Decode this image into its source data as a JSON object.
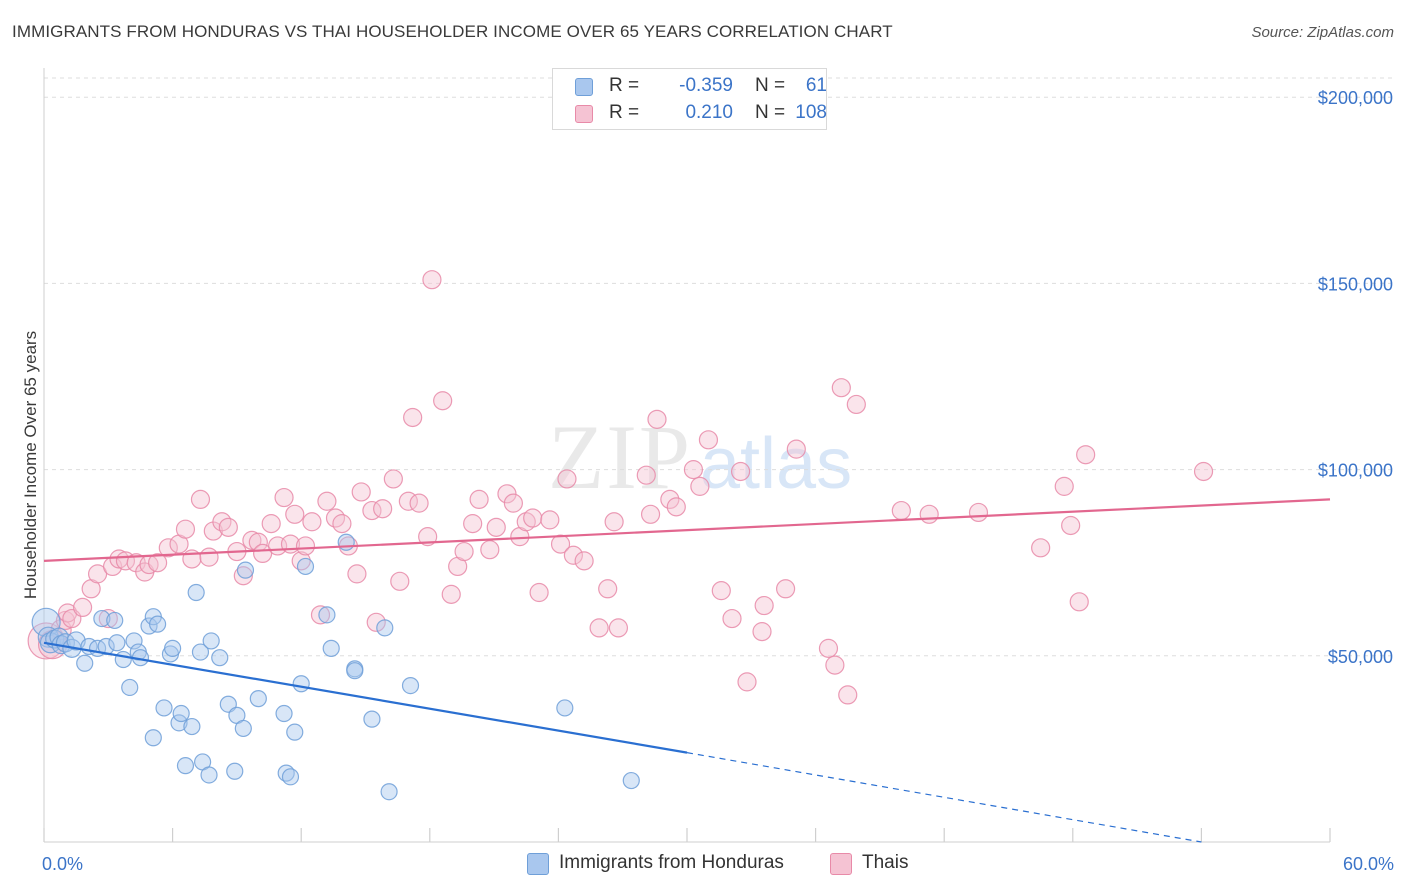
{
  "title": "IMMIGRANTS FROM HONDURAS VS THAI HOUSEHOLDER INCOME OVER 65 YEARS CORRELATION CHART",
  "source": "Source: ZipAtlas.com",
  "watermark": {
    "zip": "ZIP",
    "atlas": "atlas"
  },
  "colors": {
    "blue": "#6f9fd8",
    "blue_fill": "#a9c7ee",
    "blue_line": "#2a6fd1",
    "pink": "#e88aa8",
    "pink_fill": "#f5c3d3",
    "pink_line": "#e2678f",
    "grid": "#dddddd",
    "tick_label": "#3b74c8"
  },
  "legend": {
    "rows": [
      {
        "r_label": "R =",
        "r_value": "-0.359",
        "n_label": "N =",
        "n_value": "61",
        "color": "#6f9fd8"
      },
      {
        "r_label": "R =",
        "r_value": "0.210",
        "n_label": "N =",
        "n_value": "108",
        "color": "#e88aa8"
      }
    ]
  },
  "bottom_legend": [
    {
      "label": "Immigrants from Honduras",
      "color": "#6f9fd8"
    },
    {
      "label": "Thais",
      "color": "#e88aa8"
    }
  ],
  "chart_data": {
    "type": "scatter",
    "title": "IMMIGRANTS FROM HONDURAS VS THAI HOUSEHOLDER INCOME OVER 65 YEARS CORRELATION CHART",
    "xlabel": "",
    "ylabel": "Householder Income Over 65 years",
    "xlim": [
      0,
      60
    ],
    "ylim": [
      0,
      210000
    ],
    "x_tick_labels": [
      "0.0%",
      "60.0%"
    ],
    "y_ticks": [
      50000,
      100000,
      150000,
      200000
    ],
    "y_tick_labels": [
      "$50,000",
      "$100,000",
      "$150,000",
      "$200,000"
    ],
    "grid": true,
    "legend_position": "top-center",
    "series": [
      {
        "name": "Immigrants from Honduras",
        "trend": {
          "x0": 0,
          "y0": 53500,
          "x1": 30,
          "y1": 24000,
          "dashed_to_x": 54,
          "dashed_to_y": 0
        },
        "points": [
          [
            0.1,
            59000,
            14
          ],
          [
            0.2,
            55000,
            10
          ],
          [
            0.3,
            53500,
            10
          ],
          [
            0.5,
            54500,
            9
          ],
          [
            0.7,
            55000,
            9
          ],
          [
            0.8,
            53000,
            9
          ],
          [
            1.0,
            53500,
            9
          ],
          [
            1.3,
            52000,
            9
          ],
          [
            1.5,
            54000,
            9
          ],
          [
            1.9,
            48000,
            8
          ],
          [
            2.1,
            52500,
            8
          ],
          [
            2.5,
            52000,
            8
          ],
          [
            2.7,
            60000,
            8
          ],
          [
            2.9,
            52500,
            8
          ],
          [
            3.3,
            59500,
            8
          ],
          [
            3.4,
            53500,
            8
          ],
          [
            3.7,
            49000,
            8
          ],
          [
            4.0,
            41500,
            8
          ],
          [
            4.2,
            54000,
            8
          ],
          [
            4.4,
            51000,
            8
          ],
          [
            4.5,
            49500,
            8
          ],
          [
            4.9,
            58000,
            8
          ],
          [
            5.1,
            60500,
            8
          ],
          [
            5.1,
            28000,
            8
          ],
          [
            5.3,
            58500,
            8
          ],
          [
            5.6,
            36000,
            8
          ],
          [
            5.9,
            50500,
            8
          ],
          [
            6.0,
            52000,
            8
          ],
          [
            6.3,
            32000,
            8
          ],
          [
            6.4,
            34500,
            8
          ],
          [
            6.6,
            20500,
            8
          ],
          [
            6.9,
            31000,
            8
          ],
          [
            7.1,
            67000,
            8
          ],
          [
            7.3,
            51000,
            8
          ],
          [
            7.4,
            21500,
            8
          ],
          [
            7.7,
            18000,
            8
          ],
          [
            7.8,
            54000,
            8
          ],
          [
            8.2,
            49500,
            8
          ],
          [
            8.6,
            37000,
            8
          ],
          [
            8.9,
            19000,
            8
          ],
          [
            9.0,
            34000,
            8
          ],
          [
            9.3,
            30500,
            8
          ],
          [
            9.4,
            73000,
            8
          ],
          [
            10.0,
            38500,
            8
          ],
          [
            11.2,
            34500,
            8
          ],
          [
            11.3,
            18500,
            8
          ],
          [
            11.5,
            17500,
            8
          ],
          [
            11.7,
            29500,
            8
          ],
          [
            12.0,
            42500,
            8
          ],
          [
            12.2,
            74000,
            8
          ],
          [
            13.2,
            61000,
            8
          ],
          [
            13.4,
            52000,
            8
          ],
          [
            14.1,
            80500,
            8
          ],
          [
            14.5,
            46500,
            8
          ],
          [
            14.5,
            46000,
            8
          ],
          [
            15.3,
            33000,
            8
          ],
          [
            15.9,
            57500,
            8
          ],
          [
            16.1,
            13500,
            8
          ],
          [
            17.1,
            42000,
            8
          ],
          [
            24.3,
            36000,
            8
          ],
          [
            27.4,
            16500,
            8
          ]
        ]
      },
      {
        "name": "Thais",
        "trend": {
          "x0": 0,
          "y0": 75500,
          "x1": 60,
          "y1": 92000
        },
        "points": [
          [
            0.1,
            54000,
            18
          ],
          [
            0.4,
            53000,
            14
          ],
          [
            0.8,
            57000,
            10
          ],
          [
            1.0,
            59500,
            9
          ],
          [
            1.1,
            61500,
            9
          ],
          [
            1.3,
            60000,
            9
          ],
          [
            1.8,
            63000,
            9
          ],
          [
            2.2,
            68000,
            9
          ],
          [
            2.5,
            72000,
            9
          ],
          [
            3.0,
            60000,
            9
          ],
          [
            3.2,
            74000,
            9
          ],
          [
            3.5,
            76000,
            9
          ],
          [
            3.8,
            75500,
            9
          ],
          [
            4.3,
            75000,
            9
          ],
          [
            4.7,
            72500,
            9
          ],
          [
            4.9,
            74500,
            9
          ],
          [
            5.3,
            75000,
            9
          ],
          [
            5.8,
            79000,
            9
          ],
          [
            6.3,
            80000,
            9
          ],
          [
            6.6,
            84000,
            9
          ],
          [
            6.9,
            76000,
            9
          ],
          [
            7.3,
            92000,
            9
          ],
          [
            7.7,
            76500,
            9
          ],
          [
            7.9,
            83500,
            9
          ],
          [
            8.3,
            86000,
            9
          ],
          [
            8.6,
            84500,
            9
          ],
          [
            9.0,
            78000,
            9
          ],
          [
            9.3,
            71500,
            9
          ],
          [
            9.7,
            81000,
            9
          ],
          [
            10.0,
            80500,
            9
          ],
          [
            10.2,
            77500,
            9
          ],
          [
            10.6,
            85500,
            9
          ],
          [
            10.9,
            79500,
            9
          ],
          [
            11.2,
            92500,
            9
          ],
          [
            11.5,
            80000,
            9
          ],
          [
            11.7,
            88000,
            9
          ],
          [
            12.0,
            75500,
            9
          ],
          [
            12.2,
            79500,
            9
          ],
          [
            12.5,
            86000,
            9
          ],
          [
            12.9,
            61000,
            9
          ],
          [
            13.2,
            91500,
            9
          ],
          [
            13.6,
            87000,
            9
          ],
          [
            13.9,
            85500,
            9
          ],
          [
            14.2,
            79500,
            9
          ],
          [
            14.6,
            72000,
            9
          ],
          [
            14.8,
            94000,
            9
          ],
          [
            15.3,
            89000,
            9
          ],
          [
            15.5,
            59000,
            9
          ],
          [
            15.8,
            89500,
            9
          ],
          [
            16.3,
            97500,
            9
          ],
          [
            16.6,
            70000,
            9
          ],
          [
            17.0,
            91500,
            9
          ],
          [
            17.2,
            114000,
            9
          ],
          [
            17.5,
            91000,
            9
          ],
          [
            17.9,
            82000,
            9
          ],
          [
            18.1,
            151000,
            9
          ],
          [
            18.6,
            118500,
            9
          ],
          [
            19.0,
            66500,
            9
          ],
          [
            19.3,
            74000,
            9
          ],
          [
            19.6,
            78000,
            9
          ],
          [
            20.0,
            85500,
            9
          ],
          [
            20.3,
            92000,
            9
          ],
          [
            20.8,
            78500,
            9
          ],
          [
            21.1,
            84500,
            9
          ],
          [
            21.6,
            93500,
            9
          ],
          [
            21.9,
            91000,
            9
          ],
          [
            22.2,
            82000,
            9
          ],
          [
            22.5,
            86000,
            9
          ],
          [
            22.8,
            87000,
            9
          ],
          [
            23.1,
            67000,
            9
          ],
          [
            23.6,
            86500,
            9
          ],
          [
            24.1,
            80000,
            9
          ],
          [
            24.4,
            97500,
            9
          ],
          [
            24.7,
            77000,
            9
          ],
          [
            25.2,
            75500,
            9
          ],
          [
            25.9,
            57500,
            9
          ],
          [
            26.3,
            68000,
            9
          ],
          [
            26.6,
            86000,
            9
          ],
          [
            26.8,
            57500,
            9
          ],
          [
            28.1,
            98500,
            9
          ],
          [
            28.3,
            88000,
            9
          ],
          [
            28.6,
            113500,
            9
          ],
          [
            29.2,
            92000,
            9
          ],
          [
            29.5,
            90000,
            9
          ],
          [
            30.3,
            100000,
            9
          ],
          [
            30.6,
            95500,
            9
          ],
          [
            31.0,
            108000,
            9
          ],
          [
            31.6,
            67500,
            9
          ],
          [
            32.1,
            60000,
            9
          ],
          [
            32.5,
            99500,
            9
          ],
          [
            32.8,
            43000,
            9
          ],
          [
            33.5,
            56500,
            9
          ],
          [
            33.6,
            63500,
            9
          ],
          [
            34.6,
            68000,
            9
          ],
          [
            35.1,
            105500,
            9
          ],
          [
            36.6,
            52000,
            9
          ],
          [
            36.9,
            47500,
            9
          ],
          [
            37.2,
            122000,
            9
          ],
          [
            37.5,
            39500,
            9
          ],
          [
            37.9,
            117500,
            9
          ],
          [
            40.0,
            89000,
            9
          ],
          [
            41.3,
            88000,
            9
          ],
          [
            43.6,
            88500,
            9
          ],
          [
            46.5,
            79000,
            9
          ],
          [
            47.6,
            95500,
            9
          ],
          [
            47.9,
            85000,
            9
          ],
          [
            48.3,
            64500,
            9
          ],
          [
            48.6,
            104000,
            9
          ],
          [
            54.1,
            99500,
            9
          ]
        ]
      }
    ]
  }
}
